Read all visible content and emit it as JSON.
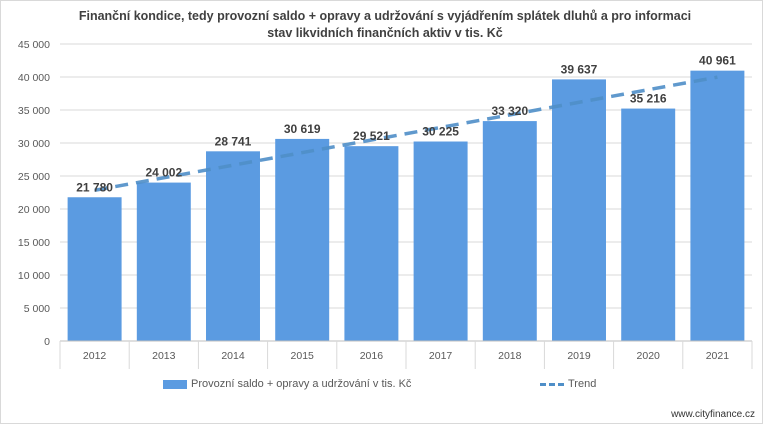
{
  "chart_data": {
    "type": "bar",
    "title": "Finanční kondice, tedy provozní saldo + opravy a udržování s vyjádřením splátek dluhů a pro informaci stav likvidních finančních aktiv v tis. Kč",
    "title_lines": [
      "Finanční kondice, tedy provozní saldo + opravy a udržování s vyjádřením splátek dluhů a pro informaci",
      "stav likvidních finančních aktiv v tis. Kč"
    ],
    "categories": [
      "2012",
      "2013",
      "2014",
      "2015",
      "2016",
      "2017",
      "2018",
      "2019",
      "2020",
      "2021"
    ],
    "series": [
      {
        "name": "Provozní saldo + opravy a udržování v tis. Kč",
        "values": [
          21780,
          24002,
          28741,
          30619,
          29521,
          30225,
          33320,
          39637,
          35216,
          40961
        ],
        "labels": [
          "21 780",
          "24 002",
          "28 741",
          "30 619",
          "29 521",
          "30 225",
          "33 320",
          "39 637",
          "35 216",
          "40 961"
        ],
        "color": "#5b9be1"
      }
    ],
    "trend": {
      "name": "Trend",
      "type": "linear",
      "color": "#4f8fc8"
    },
    "ylim": [
      0,
      45000
    ],
    "yticks": [
      0,
      5000,
      10000,
      15000,
      20000,
      25000,
      30000,
      35000,
      40000,
      45000
    ],
    "ytick_labels": [
      "0",
      "5 000",
      "10 000",
      "15 000",
      "20 000",
      "25 000",
      "30 000",
      "35 000",
      "40 000",
      "45 000"
    ],
    "grid": true,
    "legend_position": "bottom",
    "xlabel": "",
    "ylabel": ""
  },
  "watermark": "www.cityfinance.cz"
}
